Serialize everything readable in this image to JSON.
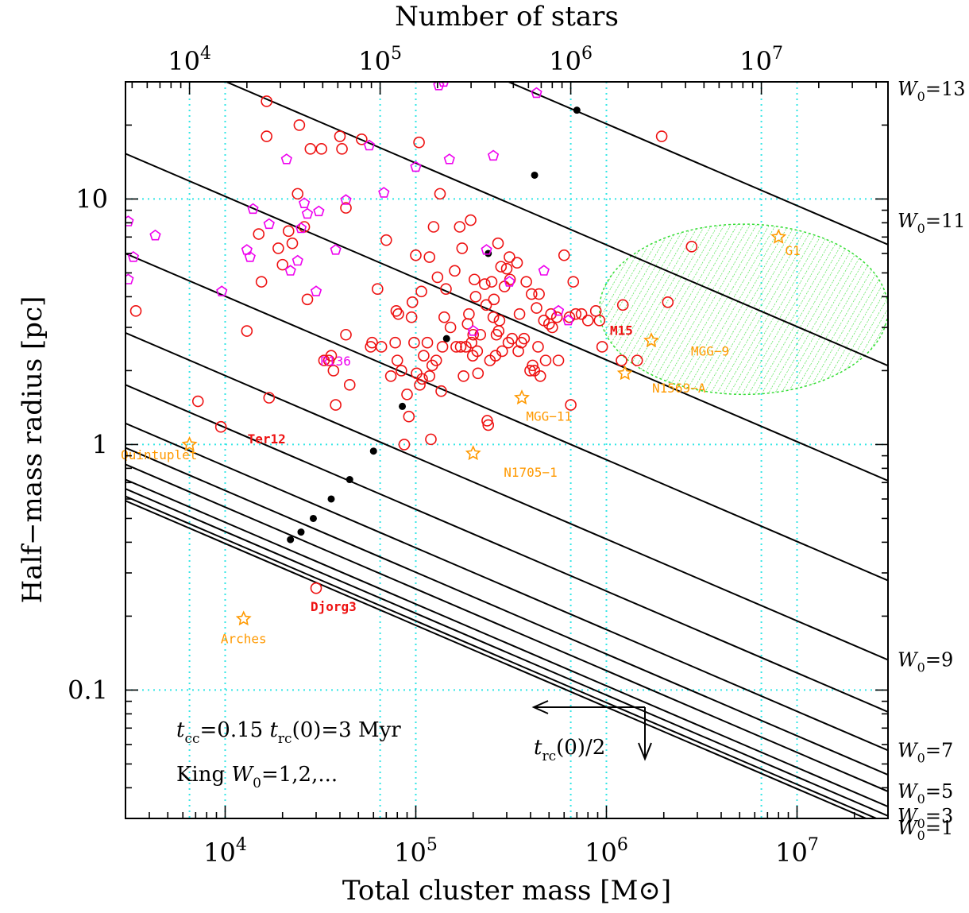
{
  "chart_data": {
    "type": "scatter",
    "xlabel": "Total cluster mass [M⊙]",
    "ylabel": "Half−mass radius [pc]",
    "top_axis_label": "Number of stars",
    "x_scale": "log",
    "y_scale": "log",
    "xlim": [
      3000,
      30000000
    ],
    "ylim": [
      0.03,
      30
    ],
    "grid": "dotted cyan at decades",
    "x_ticks": [
      "10^4",
      "10^5",
      "10^6",
      "10^7"
    ],
    "y_ticks": [
      "0.1",
      "1",
      "10"
    ],
    "top_ticks": [
      "10^4",
      "10^5",
      "10^6",
      "10^7"
    ],
    "top_tick_values_mass": [
      6500,
      65000,
      650000,
      6500000
    ],
    "colors": {
      "grid": "#33e6e6",
      "red_circles": "#ee1111",
      "magenta_pentagons": "#ee00ee",
      "orange_stars": "#ff9900",
      "shaded_region": "#33dd33",
      "curves": "#000000"
    },
    "king_curves": {
      "description": "t_cc = 0.15 t_rc(0) = 3 Myr curves for King W0 = 1..13",
      "slope": -0.333,
      "curves": [
        {
          "w0": 1,
          "r_at_3e3": 0.59,
          "label": "W0=1"
        },
        {
          "w0": 2,
          "r_at_3e3": 0.615
        },
        {
          "w0": 3,
          "r_at_3e3": 0.66,
          "label": "W0=3"
        },
        {
          "w0": 4,
          "r_at_3e3": 0.72
        },
        {
          "w0": 5,
          "r_at_3e3": 0.83,
          "label": "W0=5"
        },
        {
          "w0": 6,
          "r_at_3e3": 0.97
        },
        {
          "w0": 7,
          "r_at_3e3": 1.22,
          "label": "W0=7"
        },
        {
          "w0": 8,
          "r_at_3e3": 1.75
        },
        {
          "w0": 9,
          "r_at_3e3": 2.85,
          "label": "W0=9"
        },
        {
          "w0": 10,
          "r_at_3e3": 6.0
        },
        {
          "w0": 11,
          "r_at_3e3": 15.3,
          "label": "W0=11"
        },
        {
          "w0": 12,
          "r_at_3e3": 45.0
        },
        {
          "w0": 13,
          "r_at_3e3": 140.0,
          "label": "W0=13"
        }
      ],
      "dots": [
        {
          "mass": 22000,
          "radius": 0.41
        },
        {
          "mass": 25000,
          "radius": 0.44
        },
        {
          "mass": 29000,
          "radius": 0.5
        },
        {
          "mass": 36000,
          "radius": 0.6
        },
        {
          "mass": 45000,
          "radius": 0.72
        },
        {
          "mass": 60000,
          "radius": 0.94
        },
        {
          "mass": 85000,
          "radius": 1.43
        },
        {
          "mass": 145000,
          "radius": 2.7
        },
        {
          "mass": 240000,
          "radius": 6.0
        },
        {
          "mass": 420000,
          "radius": 12.5
        },
        {
          "mass": 700000,
          "radius": 23.0
        }
      ]
    },
    "w0_labels": [
      "W0=13",
      "W0=11",
      "W0=9",
      "W0=7",
      "W0=5",
      "W0=3",
      "W0=1"
    ],
    "notes": [
      "t_cc=0.15 t_rc(0)=3 Myr",
      "King W0=1,2,..."
    ],
    "arrow_label": "t_rc(0)/2",
    "shaded_region": {
      "center_mass": 5000000,
      "center_radius": 3.6,
      "mass_span": [
        920000,
        30000000
      ],
      "radius_span": [
        1.6,
        7.9
      ]
    },
    "series": [
      {
        "name": "red_circles",
        "marker": "circle",
        "points": [
          [
            3400,
            3.5
          ],
          [
            7200,
            1.5
          ],
          [
            9500,
            1.18
          ],
          [
            13000,
            2.9
          ],
          [
            15000,
            7.2
          ],
          [
            15500,
            4.6
          ],
          [
            16500,
            25
          ],
          [
            16500,
            18
          ],
          [
            17000,
            1.55
          ],
          [
            19000,
            6.3
          ],
          [
            20000,
            5.4
          ],
          [
            21500,
            7.4
          ],
          [
            22500,
            6.6
          ],
          [
            24000,
            10.5
          ],
          [
            24500,
            20
          ],
          [
            26000,
            7.7
          ],
          [
            27000,
            3.9
          ],
          [
            28000,
            16
          ],
          [
            30000,
            0.26
          ],
          [
            32000,
            16
          ],
          [
            33000,
            2.2
          ],
          [
            35000,
            2.2
          ],
          [
            36000,
            2.3
          ],
          [
            37000,
            2.0
          ],
          [
            38000,
            1.45
          ],
          [
            40000,
            18
          ],
          [
            41000,
            16
          ],
          [
            43000,
            2.8
          ],
          [
            43000,
            9.2
          ],
          [
            45000,
            1.75
          ],
          [
            52000,
            17.5
          ],
          [
            58000,
            2.5
          ],
          [
            59000,
            2.6
          ],
          [
            63000,
            4.3
          ],
          [
            66000,
            2.5
          ],
          [
            70000,
            6.8
          ],
          [
            74000,
            1.9
          ],
          [
            78000,
            2.6
          ],
          [
            79000,
            3.5
          ],
          [
            80000,
            2.2
          ],
          [
            81000,
            3.4
          ],
          [
            84000,
            2.0
          ],
          [
            87000,
            1.0
          ],
          [
            90000,
            1.6
          ],
          [
            92000,
            1.3
          ],
          [
            95000,
            3.3
          ],
          [
            96000,
            3.8
          ],
          [
            98000,
            2.6
          ],
          [
            100000,
            5.9
          ],
          [
            101000,
            1.95
          ],
          [
            104000,
            17
          ],
          [
            105000,
            1.75
          ],
          [
            107000,
            4.2
          ],
          [
            108000,
            1.85
          ],
          [
            110000,
            2.3
          ],
          [
            115000,
            2.6
          ],
          [
            118000,
            1.9
          ],
          [
            118000,
            5.8
          ],
          [
            120000,
            1.05
          ],
          [
            122000,
            2.1
          ],
          [
            124000,
            7.7
          ],
          [
            128000,
            2.2
          ],
          [
            130000,
            4.8
          ],
          [
            134000,
            10.5
          ],
          [
            136000,
            1.65
          ],
          [
            138000,
            2.5
          ],
          [
            141000,
            3.3
          ],
          [
            144000,
            4.3
          ],
          [
            152000,
            3.0
          ],
          [
            160000,
            5.1
          ],
          [
            163000,
            2.5
          ],
          [
            170000,
            7.7
          ],
          [
            172000,
            2.5
          ],
          [
            175000,
            6.3
          ],
          [
            178000,
            1.9
          ],
          [
            183000,
            2.5
          ],
          [
            187000,
            3.1
          ],
          [
            190000,
            3.4
          ],
          [
            194000,
            8.2
          ],
          [
            196000,
            2.6
          ],
          [
            199000,
            2.3
          ],
          [
            200000,
            2.8
          ],
          [
            203000,
            4.7
          ],
          [
            206000,
            4.0
          ],
          [
            210000,
            2.4
          ],
          [
            212000,
            1.95
          ],
          [
            218000,
            2.8
          ],
          [
            230000,
            4.5
          ],
          [
            234000,
            3.7
          ],
          [
            237000,
            1.25
          ],
          [
            240000,
            1.2
          ],
          [
            245000,
            2.2
          ],
          [
            250000,
            4.6
          ],
          [
            255000,
            3.3
          ],
          [
            257000,
            3.9
          ],
          [
            262000,
            2.3
          ],
          [
            265000,
            2.8
          ],
          [
            270000,
            6.6
          ],
          [
            272000,
            2.9
          ],
          [
            275000,
            3.2
          ],
          [
            280000,
            5.3
          ],
          [
            284000,
            2.4
          ],
          [
            292000,
            4.4
          ],
          [
            300000,
            5.2
          ],
          [
            306000,
            2.6
          ],
          [
            310000,
            5.8
          ],
          [
            312000,
            4.7
          ],
          [
            320000,
            2.7
          ],
          [
            340000,
            5.5
          ],
          [
            345000,
            2.4
          ],
          [
            350000,
            3.4
          ],
          [
            358000,
            2.6
          ],
          [
            370000,
            2.7
          ],
          [
            380000,
            4.6
          ],
          [
            398000,
            2.0
          ],
          [
            405000,
            4.1
          ],
          [
            410000,
            2.1
          ],
          [
            419000,
            2.0
          ],
          [
            430000,
            3.6
          ],
          [
            438000,
            2.5
          ],
          [
            443000,
            4.1
          ],
          [
            450000,
            1.9
          ],
          [
            470000,
            3.2
          ],
          [
            480000,
            2.2
          ],
          [
            500000,
            3.1
          ],
          [
            512000,
            3.4
          ],
          [
            520000,
            3.0
          ],
          [
            550000,
            3.3
          ],
          [
            560000,
            2.2
          ],
          [
            600000,
            5.9
          ],
          [
            640000,
            3.3
          ],
          [
            650000,
            1.45
          ],
          [
            670000,
            4.6
          ],
          [
            690000,
            3.4
          ],
          [
            740000,
            3.4
          ],
          [
            800000,
            3.2
          ],
          [
            880000,
            3.5
          ],
          [
            920000,
            3.2
          ],
          [
            950000,
            2.5
          ],
          [
            1200000,
            2.2
          ],
          [
            1220000,
            3.7
          ],
          [
            1450000,
            2.2
          ],
          [
            1950000,
            18
          ],
          [
            2100000,
            3.8
          ],
          [
            2800000,
            6.4
          ]
        ]
      },
      {
        "name": "magenta_pentagons",
        "marker": "pentagon",
        "points": [
          [
            3100,
            8.1
          ],
          [
            3100,
            4.7
          ],
          [
            3300,
            5.8
          ],
          [
            4300,
            7.1
          ],
          [
            9600,
            4.2
          ],
          [
            13000,
            6.2
          ],
          [
            13500,
            5.8
          ],
          [
            14000,
            9.1
          ],
          [
            17000,
            7.9
          ],
          [
            21000,
            14.5
          ],
          [
            22000,
            5.1
          ],
          [
            24000,
            5.6
          ],
          [
            25000,
            7.6
          ],
          [
            26000,
            9.6
          ],
          [
            27000,
            8.7
          ],
          [
            30000,
            4.2
          ],
          [
            31000,
            8.9
          ],
          [
            38000,
            6.2
          ],
          [
            43000,
            9.9
          ],
          [
            57000,
            16.5
          ],
          [
            68000,
            10.6
          ],
          [
            100000,
            13.5
          ],
          [
            132000,
            29
          ],
          [
            140000,
            30
          ],
          [
            150000,
            14.5
          ],
          [
            200000,
            2.9
          ],
          [
            235000,
            6.2
          ],
          [
            255000,
            15
          ],
          [
            310000,
            4.6
          ],
          [
            430000,
            27
          ],
          [
            470000,
            5.1
          ],
          [
            560000,
            3.5
          ],
          [
            630000,
            3.2
          ]
        ]
      },
      {
        "name": "orange_stars",
        "marker": "star",
        "points": [
          [
            6500,
            1.0
          ],
          [
            12500,
            0.195
          ],
          [
            200000,
            0.92
          ],
          [
            360000,
            1.55
          ],
          [
            1250000,
            1.95
          ],
          [
            1720000,
            2.65
          ],
          [
            8000000,
            7.0
          ]
        ]
      }
    ],
    "annotations": [
      {
        "text": "Quintuplet",
        "color": "#ff9900",
        "mass": 4500,
        "radius": 0.87
      },
      {
        "text": "Ter12",
        "color": "#ee1111",
        "mass": 16500,
        "radius": 1.01
      },
      {
        "text": "Arches",
        "color": "#ff9900",
        "mass": 12500,
        "radius": 0.155
      },
      {
        "text": "Djorg3",
        "color": "#ee1111",
        "mass": 37000,
        "radius": 0.21
      },
      {
        "text": "R136",
        "color": "#ee00ee",
        "mass": 38000,
        "radius": 2.1
      },
      {
        "text": "MGG−11",
        "color": "#ff9900",
        "mass": 500000,
        "radius": 1.25
      },
      {
        "text": "N1705−1",
        "color": "#ff9900",
        "mass": 400000,
        "radius": 0.74
      },
      {
        "text": "N1569−A",
        "color": "#ff9900",
        "mass": 2400000,
        "radius": 1.63
      },
      {
        "text": "MGG−9",
        "color": "#ff9900",
        "mass": 3500000,
        "radius": 2.3
      },
      {
        "text": "M15",
        "color": "#ee1111",
        "mass": 1200000,
        "radius": 2.8
      },
      {
        "text": "G1",
        "color": "#ff9900",
        "mass": 9500000,
        "radius": 5.9
      }
    ]
  }
}
